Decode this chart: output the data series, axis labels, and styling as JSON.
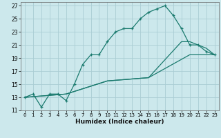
{
  "xlabel": "Humidex (Indice chaleur)",
  "bg_color": "#cce8ec",
  "grid_color": "#aacdd4",
  "line_color": "#1a7a6e",
  "xlim": [
    -0.5,
    23.5
  ],
  "ylim": [
    11,
    27.5
  ],
  "yticks": [
    11,
    13,
    15,
    17,
    19,
    21,
    23,
    25,
    27
  ],
  "xticks": [
    0,
    1,
    2,
    3,
    4,
    5,
    6,
    7,
    8,
    9,
    10,
    11,
    12,
    13,
    14,
    15,
    16,
    17,
    18,
    19,
    20,
    21,
    22,
    23
  ],
  "line1_x": [
    0,
    1,
    2,
    3,
    4,
    5,
    6,
    7,
    8,
    9,
    10,
    11,
    12,
    13,
    14,
    15,
    16,
    17,
    18,
    19,
    20,
    21,
    22,
    23
  ],
  "line1_y": [
    13,
    13.5,
    11.5,
    13.5,
    13.5,
    12.5,
    15,
    18,
    19.5,
    19.5,
    21.5,
    23,
    23.5,
    23.5,
    25,
    26,
    26.5,
    27,
    25.5,
    23.5,
    21,
    21,
    20,
    19.5
  ],
  "line2_x": [
    0,
    5,
    10,
    15,
    20,
    23
  ],
  "line2_y": [
    13,
    13.5,
    15.5,
    16,
    19.5,
    19.5
  ],
  "line3_x": [
    0,
    5,
    10,
    15,
    19,
    20,
    21,
    22,
    23
  ],
  "line3_y": [
    13,
    13.5,
    15.5,
    16,
    21.5,
    21.5,
    21,
    20.5,
    19.5
  ]
}
